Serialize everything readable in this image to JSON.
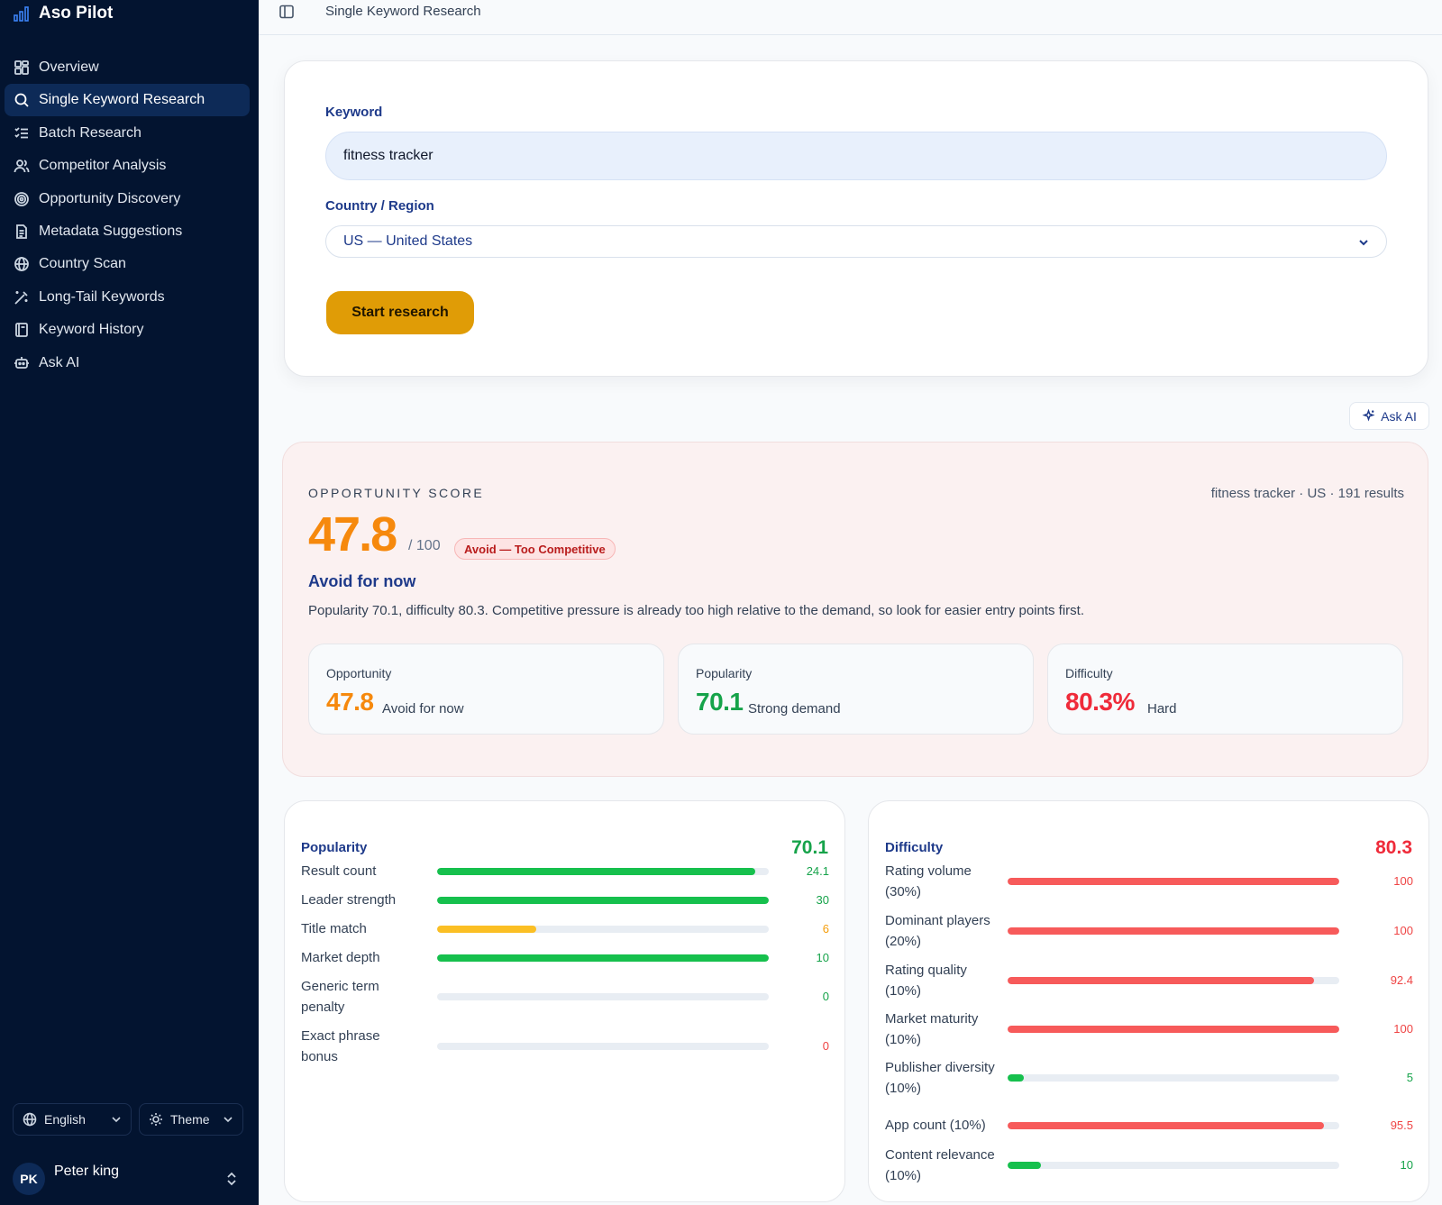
{
  "app": {
    "name": "Aso Pilot"
  },
  "sidebar": {
    "items": [
      {
        "label": "Overview",
        "icon": "dashboard-icon",
        "active": false
      },
      {
        "label": "Single Keyword Research",
        "icon": "search-icon",
        "active": true
      },
      {
        "label": "Batch Research",
        "icon": "list-checks-icon",
        "active": false
      },
      {
        "label": "Competitor Analysis",
        "icon": "users-icon",
        "active": false
      },
      {
        "label": "Opportunity Discovery",
        "icon": "target-icon",
        "active": false
      },
      {
        "label": "Metadata Suggestions",
        "icon": "document-icon",
        "active": false
      },
      {
        "label": "Country Scan",
        "icon": "globe-icon",
        "active": false
      },
      {
        "label": "Long-Tail Keywords",
        "icon": "wand-icon",
        "active": false
      },
      {
        "label": "Keyword History",
        "icon": "notebook-icon",
        "active": false
      },
      {
        "label": "Ask AI",
        "icon": "bot-icon",
        "active": false
      }
    ],
    "language": "English",
    "theme": "Theme",
    "user": {
      "initials": "PK",
      "name": "Peter king"
    }
  },
  "topbar": {
    "breadcrumb": "Single Keyword Research"
  },
  "form": {
    "keyword_label": "Keyword",
    "keyword_value": "fitness tracker",
    "country_label": "Country / Region",
    "country_value": "US — United States",
    "submit_label": "Start research"
  },
  "ask_ai_label": "Ask AI",
  "score": {
    "label": "OPPORTUNITY SCORE",
    "meta": "fitness tracker · US · 191 results",
    "value": "47.8",
    "out_of": "/ 100",
    "badge": "Avoid — Too Competitive",
    "verdict": "Avoid for now",
    "summary": "Popularity 70.1, difficulty 80.3. Competitive pressure is already too high relative to the demand, so look for easier entry points first.",
    "metrics": [
      {
        "label": "Opportunity",
        "value": "47.8",
        "desc": "Avoid for now",
        "color": "#f6890d"
      },
      {
        "label": "Popularity",
        "value": "70.1",
        "desc": "Strong demand",
        "color": "#16a34a"
      },
      {
        "label": "Difficulty",
        "value": "80.3%",
        "desc": "Hard",
        "color": "#ef2b3a"
      }
    ]
  },
  "popularity": {
    "title": "Popularity",
    "total": "70.1",
    "total_color": "#16a34a",
    "rows": [
      {
        "label": "Result count",
        "value": "24.1",
        "fill": 0.96,
        "color": "#16c04d",
        "value_color": "#16a34a"
      },
      {
        "label": "Leader strength",
        "value": "30",
        "fill": 1.0,
        "color": "#16c04d",
        "value_color": "#16a34a"
      },
      {
        "label": "Title match",
        "value": "6",
        "fill": 0.3,
        "color": "#fbbf24",
        "value_color": "#f59e0b"
      },
      {
        "label": "Market depth",
        "value": "10",
        "fill": 1.0,
        "color": "#16c04d",
        "value_color": "#16a34a"
      },
      {
        "label": "Generic term penalty",
        "value": "0",
        "fill": 0,
        "color": "#16c04d",
        "value_color": "#16a34a"
      },
      {
        "label": "Exact phrase bonus",
        "value": "0",
        "fill": 0,
        "color": "#ef4444",
        "value_color": "#ef4444"
      }
    ]
  },
  "difficulty": {
    "title": "Difficulty",
    "total": "80.3",
    "total_color": "#ef2b3a",
    "rows": [
      {
        "label": "Rating volume (30%)",
        "value": "100",
        "fill": 1.0,
        "color": "#f75a5a",
        "value_color": "#ef4444"
      },
      {
        "label": "Dominant players (20%)",
        "value": "100",
        "fill": 1.0,
        "color": "#f75a5a",
        "value_color": "#ef4444"
      },
      {
        "label": "Rating quality (10%)",
        "value": "92.4",
        "fill": 0.924,
        "color": "#f75a5a",
        "value_color": "#ef4444"
      },
      {
        "label": "Market maturity (10%)",
        "value": "100",
        "fill": 1.0,
        "color": "#f75a5a",
        "value_color": "#ef4444"
      },
      {
        "label": "Publisher diversity (10%)",
        "value": "5",
        "fill": 0.05,
        "color": "#16c04d",
        "value_color": "#16a34a"
      },
      {
        "label": "App count (10%)",
        "value": "95.5",
        "fill": 0.955,
        "color": "#f75a5a",
        "value_color": "#ef4444"
      },
      {
        "label": "Content relevance (10%)",
        "value": "10",
        "fill": 0.1,
        "color": "#16c04d",
        "value_color": "#16a34a"
      }
    ]
  }
}
